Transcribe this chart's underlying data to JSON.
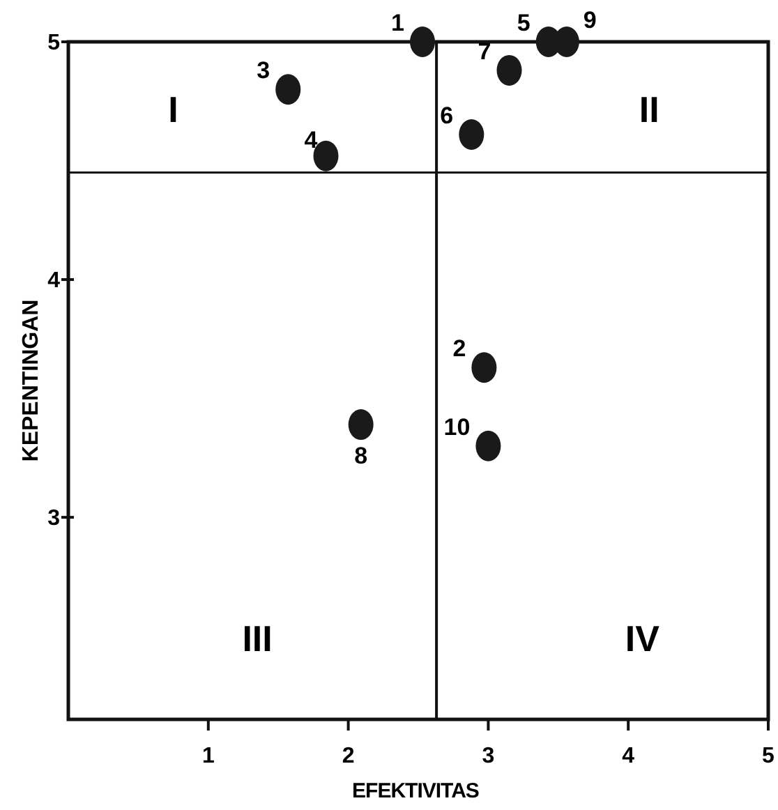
{
  "chart_data": {
    "type": "scatter",
    "xlabel": "EFEKTIVITAS",
    "ylabel": "KEPENTINGAN",
    "xlim": [
      0,
      5
    ],
    "ylim": [
      2.15,
      5
    ],
    "xticks": [
      1,
      2,
      3,
      4,
      5
    ],
    "yticks": [
      3,
      4,
      5
    ],
    "grid": false,
    "marker": "circle",
    "ref_lines": [
      {
        "axis": "x",
        "value": 2.63
      },
      {
        "axis": "y",
        "value": 4.45
      }
    ],
    "series": [
      {
        "color": "#1a1a1a",
        "x": [
          2.53,
          2.97,
          1.57,
          1.84,
          3.43,
          2.88,
          3.15,
          2.09,
          3.56,
          3.0
        ],
        "values": [
          5.0,
          3.63,
          4.8,
          4.52,
          5.0,
          4.61,
          4.88,
          3.39,
          5.0,
          3.3
        ]
      }
    ],
    "annotations": [
      "I",
      "II",
      "III",
      "IV",
      {
        "text": "1",
        "x": 2.53,
        "y": 5.0
      },
      {
        "text": "2",
        "x": 2.97,
        "y": 3.63
      },
      {
        "text": "3",
        "x": 1.57,
        "y": 4.8
      },
      {
        "text": "4",
        "x": 1.84,
        "y": 4.52
      },
      {
        "text": "5",
        "x": 3.43,
        "y": 5.0
      },
      {
        "text": "6",
        "x": 2.88,
        "y": 4.61
      },
      {
        "text": "7",
        "x": 3.15,
        "y": 4.88
      },
      {
        "text": "8",
        "x": 2.09,
        "y": 3.39
      },
      {
        "text": "9",
        "x": 3.56,
        "y": 5.0
      },
      {
        "text": "10",
        "x": 3.0,
        "y": 3.3
      }
    ]
  }
}
